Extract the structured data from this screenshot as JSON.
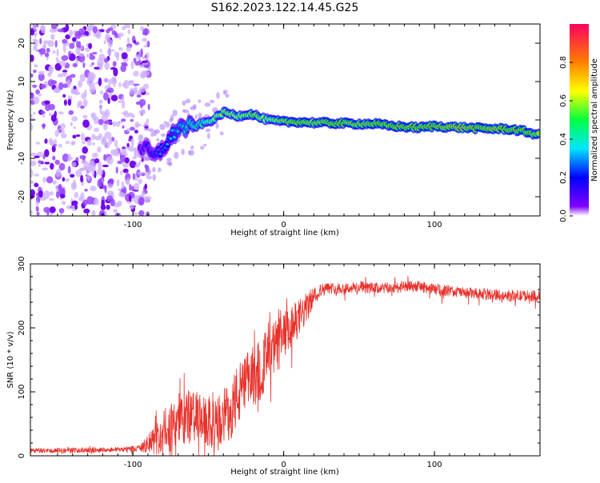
{
  "title": "S162.2023.122.14.45.G25",
  "colors": {
    "snr_line": "#e8302a",
    "axis": "#000000",
    "colorbar": [
      "#8000ff",
      "#0000ff",
      "#00e5ff",
      "#00ff40",
      "#ffff00",
      "#ff8000",
      "#ff0060"
    ]
  },
  "chart_data": [
    {
      "type": "heatmap",
      "title": "S162.2023.122.14.45.G25",
      "xlabel": "Height of straight line (km)",
      "ylabel": "Frequency (Hz)",
      "xlim": [
        -168,
        170
      ],
      "ylim": [
        -25,
        25
      ],
      "xticks": [
        -100,
        0,
        100
      ],
      "xtick_labels": [
        "-100",
        "0",
        "100"
      ],
      "yticks": [
        -20,
        -10,
        0,
        10,
        20
      ],
      "ytick_labels": [
        "-20",
        "-10",
        "0",
        "10",
        "20"
      ],
      "grid": false,
      "colorbar": {
        "label": "Normalized spectral amplitude",
        "range": [
          0,
          1
        ],
        "ticks": [
          0.0,
          0.2,
          0.4,
          0.6,
          0.8
        ],
        "tick_labels": [
          "0.0",
          "0.2",
          "0.4",
          "0.6",
          "0.8"
        ]
      },
      "noise_region_x": [
        -168,
        -95
      ],
      "ridge": {
        "x": [
          -95,
          -90,
          -85,
          -80,
          -75,
          -70,
          -65,
          -60,
          -55,
          -50,
          -45,
          -40,
          -35,
          -30,
          -25,
          -20,
          -15,
          -10,
          -5,
          0,
          10,
          20,
          30,
          40,
          50,
          60,
          70,
          80,
          90,
          100,
          110,
          120,
          130,
          140,
          150,
          160,
          170
        ],
        "frequency": [
          -7,
          -8,
          -10,
          -7,
          -5,
          -2,
          -2,
          -2,
          -1,
          -0.5,
          0.5,
          2,
          1.5,
          1,
          1.5,
          1.5,
          0.5,
          0,
          -0.3,
          -0.5,
          -0.5,
          -0.7,
          -0.8,
          -0.9,
          -1,
          -1,
          -1.5,
          -1.8,
          -2,
          -1.6,
          -1.8,
          -2,
          -2.2,
          -2.3,
          -2.4,
          -3,
          -4
        ],
        "amplitude": [
          0.25,
          0.3,
          0.35,
          0.4,
          0.45,
          0.5,
          0.55,
          0.6,
          0.6,
          0.65,
          0.7,
          0.75,
          0.75,
          0.7,
          0.75,
          0.8,
          0.75,
          0.7,
          0.75,
          0.8,
          0.85,
          0.8,
          0.85,
          0.85,
          0.8,
          0.85,
          0.85,
          0.85,
          0.85,
          0.85,
          0.9,
          0.9,
          0.85,
          0.9,
          0.85,
          0.85,
          0.8
        ]
      }
    },
    {
      "type": "line",
      "xlabel": "Height of straight line (km)",
      "ylabel": "SNR (10 * v/v)",
      "xlim": [
        -168,
        170
      ],
      "ylim": [
        0,
        300
      ],
      "xticks": [
        -100,
        0,
        100
      ],
      "xtick_labels": [
        "-100",
        "0",
        "100"
      ],
      "yticks": [
        0,
        100,
        200,
        300
      ],
      "ytick_labels": [
        "0",
        "100",
        "200",
        "300"
      ],
      "grid": false,
      "series": [
        {
          "x": [
            -168,
            -150,
            -130,
            -110,
            -95,
            -90,
            -85,
            -80,
            -75,
            -70,
            -65,
            -60,
            -55,
            -50,
            -45,
            -40,
            -35,
            -30,
            -25,
            -20,
            -15,
            -10,
            -5,
            0,
            5,
            10,
            15,
            20,
            25,
            30,
            40,
            50,
            60,
            70,
            80,
            90,
            100,
            110,
            120,
            130,
            140,
            150,
            160,
            170
          ],
          "values": [
            8,
            8,
            9,
            10,
            12,
            18,
            25,
            35,
            45,
            55,
            60,
            62,
            55,
            50,
            48,
            60,
            75,
            95,
            110,
            125,
            140,
            155,
            170,
            185,
            200,
            215,
            230,
            250,
            260,
            262,
            262,
            263,
            262,
            262,
            264,
            265,
            260,
            258,
            255,
            253,
            252,
            250,
            250,
            250
          ],
          "noise": [
            4,
            4,
            4,
            4,
            5,
            15,
            25,
            35,
            40,
            45,
            45,
            45,
            40,
            40,
            40,
            45,
            50,
            50,
            50,
            50,
            50,
            45,
            45,
            40,
            35,
            30,
            25,
            15,
            10,
            9,
            9,
            9,
            9,
            9,
            9,
            9,
            9,
            9,
            9,
            9,
            9,
            9,
            9,
            9
          ]
        }
      ]
    }
  ]
}
